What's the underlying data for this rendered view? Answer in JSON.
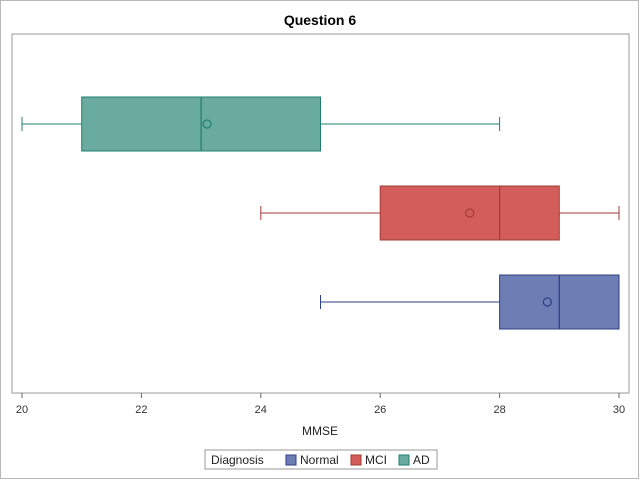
{
  "chart_data": {
    "type": "box",
    "orientation": "horizontal",
    "title": "Question 6",
    "xlabel": "MMSE",
    "ylabel": "",
    "xlim": [
      20,
      30
    ],
    "xticks": [
      20,
      22,
      24,
      26,
      28,
      30
    ],
    "grid": false,
    "legend_title": "Diagnosis",
    "legend_placement": "bottom-center",
    "series": [
      {
        "name": "AD",
        "color": "#6aaba0",
        "edge_color": "#1f7f6e",
        "min": 20,
        "q1": 21,
        "median": 23,
        "q3": 25,
        "max": 28,
        "mean": 23.1
      },
      {
        "name": "MCI",
        "color": "#d25d5a",
        "edge_color": "#a33b33",
        "min": 24,
        "q1": 26,
        "median": 28,
        "q3": 29,
        "max": 30,
        "mean": 27.5
      },
      {
        "name": "Normal",
        "color": "#6f7db5",
        "edge_color": "#2c3f86",
        "min": 25,
        "q1": 28,
        "median": 29,
        "q3": 30,
        "max": 30,
        "mean": 28.8
      }
    ],
    "legend_order": [
      "Normal",
      "MCI",
      "AD"
    ]
  }
}
